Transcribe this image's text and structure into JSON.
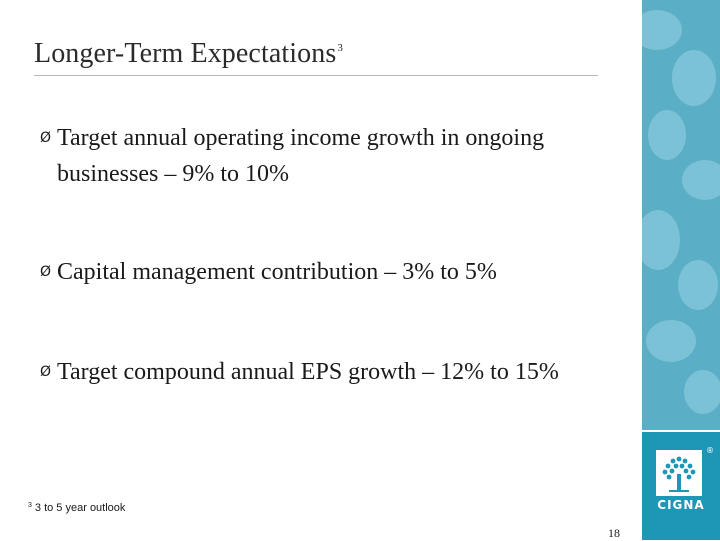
{
  "slide": {
    "title": "Longer-Term Expectations",
    "title_superscript": "3",
    "bullets": [
      {
        "text": "Target annual operating income growth in ongoing businesses – 9% to 10%"
      },
      {
        "text": "Capital management contribution – 3% to 5%"
      },
      {
        "text": "Target compound annual EPS growth – 12% to 15%"
      }
    ],
    "bullet_marker": "Ø",
    "footnote": {
      "marker": "3",
      "text": "3 to 5 year outlook"
    },
    "page_number": "18"
  },
  "branding": {
    "logo_text": "CIGNA",
    "registered_mark": "®",
    "logo_icon": "tree-icon",
    "colors": {
      "sidebar": "#5aaec6",
      "logo_box": "#1e97b6",
      "text": "#1a1a1a"
    }
  }
}
